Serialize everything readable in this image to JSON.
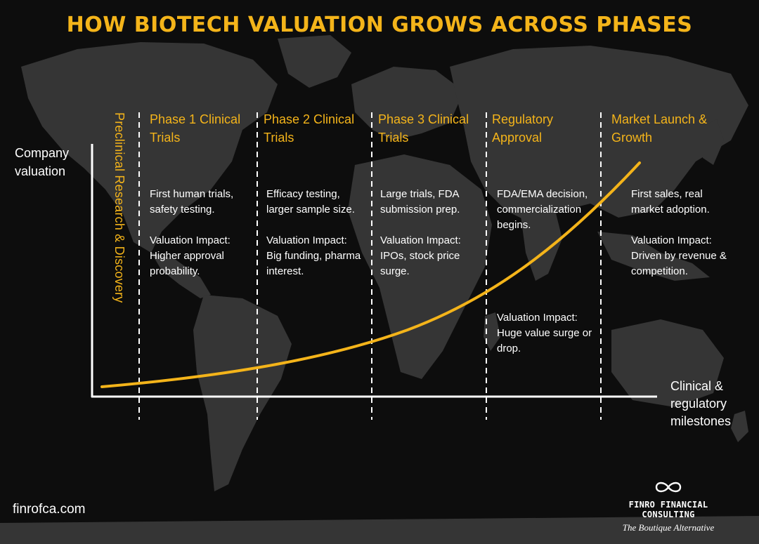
{
  "title": "HOW BIOTECH VALUATION GROWS ACROSS PHASES",
  "axes": {
    "y_label": "Company valuation",
    "x_label": "Clinical & regulatory milestones"
  },
  "preclinical_label": "Preclinical Research & Discovery",
  "phases": [
    {
      "title": "Phase 1 Clinical Trials",
      "description": "First human trials, safety testing.",
      "impact": "Valuation Impact: Higher approval probability."
    },
    {
      "title": "Phase 2 Clinical Trials",
      "description": "Efficacy testing, larger sample size.",
      "impact": "Valuation Impact: Big funding, pharma interest."
    },
    {
      "title": "Phase 3 Clinical Trials",
      "description": "Large trials, FDA submission prep.",
      "impact": "Valuation Impact: IPOs, stock price surge."
    },
    {
      "title": "Regulatory Approval",
      "description": "FDA/EMA decision, commercialization begins.",
      "impact": "Valuation Impact: Huge value surge or drop."
    },
    {
      "title": "Market Launch & Growth",
      "description": "First sales, real market adoption.",
      "impact": "Valuation Impact: Driven by revenue & competition."
    }
  ],
  "footer": {
    "website": "finrofca.com",
    "brand": "FINRO FINANCIAL CONSULTING",
    "tagline": "The Boutique Alternative"
  },
  "colors": {
    "accent": "#f4b41a",
    "background": "#0d0d0d",
    "map": "#3a3a3a",
    "text": "#ffffff"
  },
  "icons": [
    "infinity-logo-icon"
  ]
}
